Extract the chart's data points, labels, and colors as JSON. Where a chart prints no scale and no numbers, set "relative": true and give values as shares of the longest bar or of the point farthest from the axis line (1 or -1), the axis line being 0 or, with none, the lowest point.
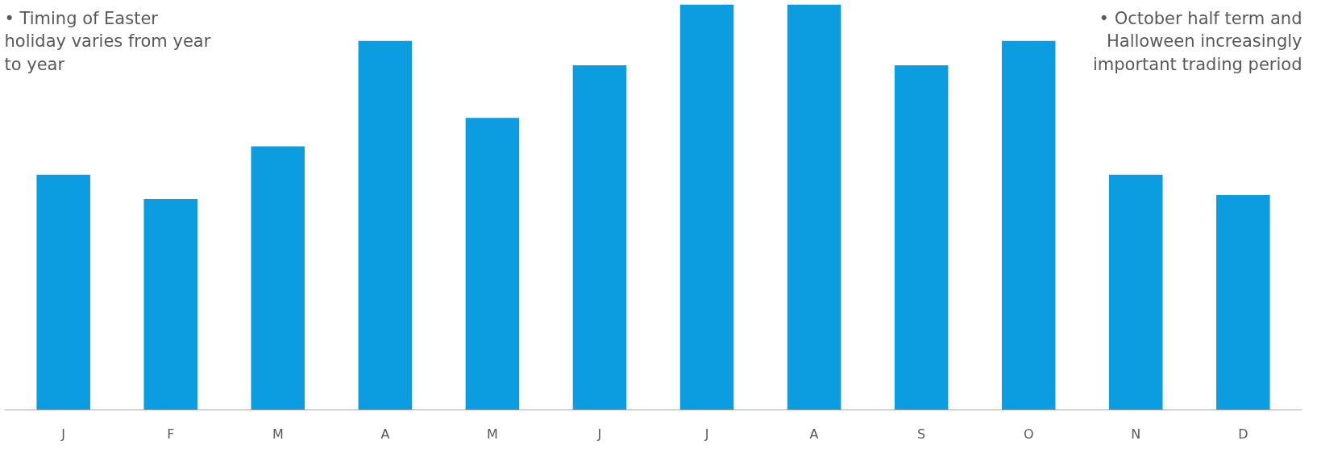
{
  "chart_data": {
    "type": "bar",
    "relative": true,
    "categories": [
      "J",
      "F",
      "M",
      "A",
      "M",
      "J",
      "J",
      "A",
      "S",
      "O",
      "N",
      "D"
    ],
    "values": [
      0.58,
      0.52,
      0.65,
      0.91,
      0.72,
      0.85,
      1,
      1,
      0.85,
      0.91,
      0.58,
      0.53
    ],
    "color": "#0b9de0",
    "grid": false,
    "annotations": [
      "• Timing of Easter holiday varies from year to year",
      "• October half term and Halloween increasingly important trading period"
    ]
  }
}
